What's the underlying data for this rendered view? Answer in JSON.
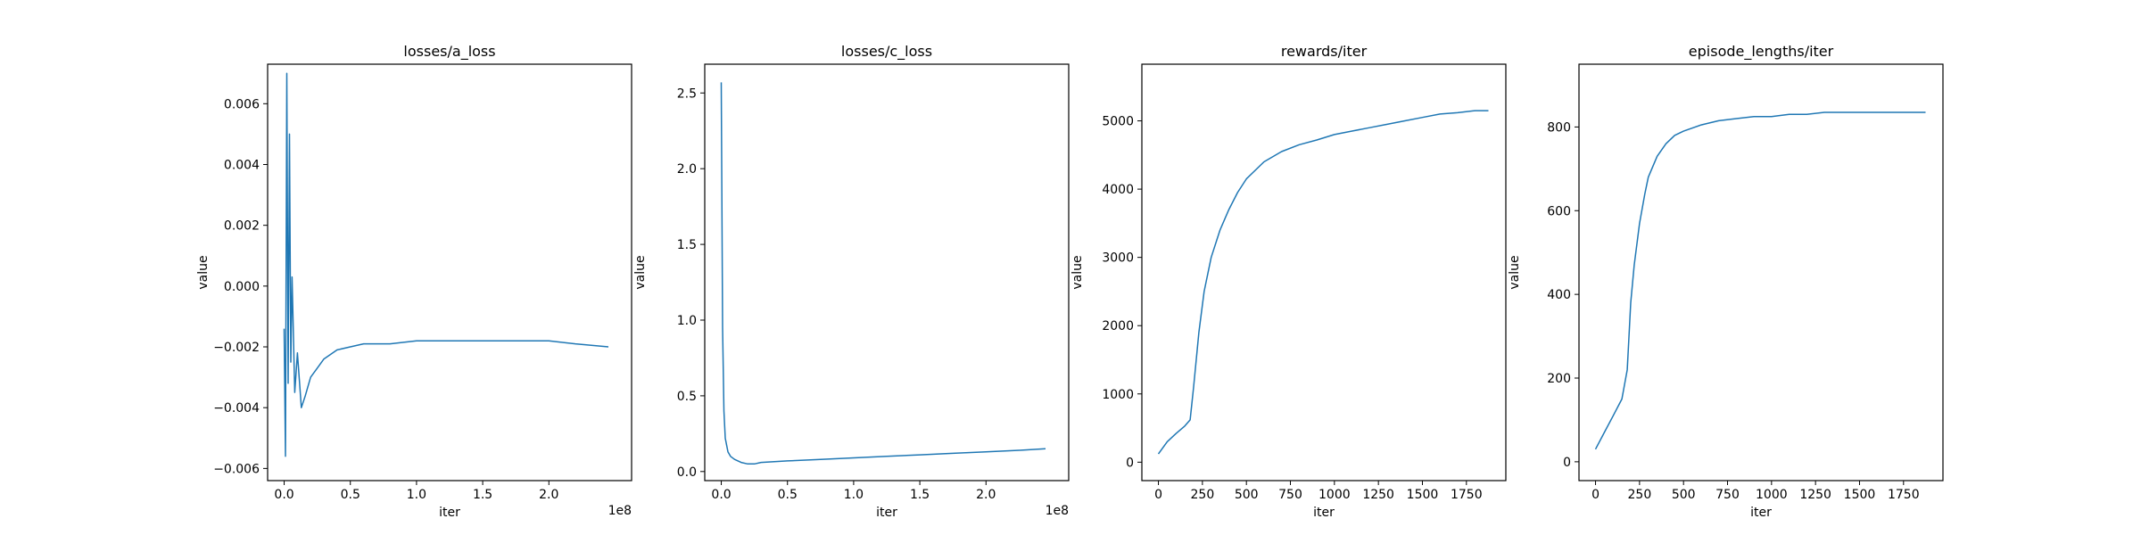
{
  "figure": {
    "line_color": "#1f77b4",
    "axis_color": "#000000",
    "background": "#ffffff"
  },
  "chart_data": [
    {
      "type": "line",
      "title": "losses/a_loss",
      "xlabel": "iter",
      "ylabel": "value",
      "x_offset_text": "1e8",
      "xlim": [
        -12500000,
        262500000
      ],
      "ylim": [
        -0.0064,
        0.0073
      ],
      "xticks": [
        0,
        50000000,
        100000000,
        150000000,
        200000000
      ],
      "xtick_labels": [
        "0.0",
        "0.5",
        "1.0",
        "1.5",
        "2.0"
      ],
      "yticks": [
        -0.006,
        -0.004,
        -0.002,
        0.0,
        0.002,
        0.004,
        0.006
      ],
      "ytick_labels": [
        "−0.006",
        "−0.004",
        "−0.002",
        "0.000",
        "0.002",
        "0.004",
        "0.006"
      ],
      "grid": false,
      "series": [
        {
          "x": [
            0,
            1000000,
            2000000,
            3000000,
            4000000,
            5000000,
            6000000,
            8000000,
            10000000,
            13000000,
            16000000,
            20000000,
            25000000,
            30000000,
            40000000,
            50000000,
            60000000,
            80000000,
            100000000,
            120000000,
            150000000,
            180000000,
            200000000,
            220000000,
            245000000
          ],
          "y": [
            -0.0014,
            -0.0056,
            0.007,
            -0.0032,
            0.005,
            -0.0025,
            0.0003,
            -0.0035,
            -0.0022,
            -0.004,
            -0.0036,
            -0.003,
            -0.0027,
            -0.0024,
            -0.0021,
            -0.002,
            -0.0019,
            -0.0019,
            -0.0018,
            -0.0018,
            -0.0018,
            -0.0018,
            -0.0018,
            -0.0019,
            -0.002
          ]
        }
      ]
    },
    {
      "type": "line",
      "title": "losses/c_loss",
      "xlabel": "iter",
      "ylabel": "value",
      "x_offset_text": "1e8",
      "xlim": [
        -12500000,
        262500000
      ],
      "ylim": [
        -0.06,
        2.69
      ],
      "xticks": [
        0,
        50000000,
        100000000,
        150000000,
        200000000
      ],
      "xtick_labels": [
        "0.0",
        "0.5",
        "1.0",
        "1.5",
        "2.0"
      ],
      "yticks": [
        0.0,
        0.5,
        1.0,
        1.5,
        2.0,
        2.5
      ],
      "ytick_labels": [
        "0.0",
        "0.5",
        "1.0",
        "1.5",
        "2.0",
        "2.5"
      ],
      "grid": false,
      "series": [
        {
          "x": [
            0,
            1000000,
            2000000,
            3000000,
            5000000,
            7000000,
            10000000,
            15000000,
            20000000,
            25000000,
            30000000,
            50000000,
            75000000,
            100000000,
            125000000,
            150000000,
            175000000,
            200000000,
            225000000,
            245000000
          ],
          "y": [
            2.57,
            0.95,
            0.4,
            0.22,
            0.13,
            0.1,
            0.08,
            0.06,
            0.05,
            0.05,
            0.06,
            0.07,
            0.08,
            0.09,
            0.1,
            0.11,
            0.12,
            0.13,
            0.14,
            0.15
          ]
        }
      ]
    },
    {
      "type": "line",
      "title": "rewards/iter",
      "xlabel": "iter",
      "ylabel": "value",
      "xlim": [
        -94,
        1974
      ],
      "ylim": [
        -270,
        5830
      ],
      "xticks": [
        0,
        250,
        500,
        750,
        1000,
        1250,
        1500,
        1750
      ],
      "xtick_labels": [
        "0",
        "250",
        "500",
        "750",
        "1000",
        "1250",
        "1500",
        "1750"
      ],
      "yticks": [
        0,
        1000,
        2000,
        3000,
        4000,
        5000
      ],
      "ytick_labels": [
        "0",
        "1000",
        "2000",
        "3000",
        "4000",
        "5000"
      ],
      "grid": false,
      "series": [
        {
          "x": [
            0,
            50,
            100,
            150,
            180,
            200,
            230,
            260,
            300,
            350,
            400,
            450,
            500,
            600,
            700,
            800,
            900,
            1000,
            1100,
            1200,
            1300,
            1400,
            1500,
            1600,
            1700,
            1800,
            1875
          ],
          "y": [
            120,
            300,
            420,
            530,
            620,
            1100,
            1900,
            2500,
            3000,
            3400,
            3700,
            3950,
            4150,
            4400,
            4550,
            4650,
            4720,
            4800,
            4850,
            4900,
            4950,
            5000,
            5050,
            5100,
            5120,
            5150,
            5150
          ]
        }
      ]
    },
    {
      "type": "line",
      "title": "episode_lengths/iter",
      "xlabel": "iter",
      "ylabel": "value",
      "xlim": [
        -94,
        1974
      ],
      "ylim": [
        -45,
        950
      ],
      "xticks": [
        0,
        250,
        500,
        750,
        1000,
        1250,
        1500,
        1750
      ],
      "xtick_labels": [
        "0",
        "250",
        "500",
        "750",
        "1000",
        "1250",
        "1500",
        "1750"
      ],
      "yticks": [
        0,
        200,
        400,
        600,
        800
      ],
      "ytick_labels": [
        "0",
        "200",
        "400",
        "600",
        "800"
      ],
      "grid": false,
      "series": [
        {
          "x": [
            0,
            50,
            100,
            150,
            180,
            200,
            220,
            250,
            280,
            300,
            350,
            400,
            450,
            500,
            600,
            700,
            800,
            900,
            1000,
            1100,
            1200,
            1300,
            1400,
            1500,
            1600,
            1700,
            1800,
            1875
          ],
          "y": [
            30,
            70,
            110,
            150,
            220,
            380,
            470,
            570,
            640,
            680,
            730,
            760,
            780,
            790,
            805,
            815,
            820,
            825,
            825,
            830,
            830,
            835,
            835,
            835,
            835,
            835,
            835,
            835
          ]
        }
      ]
    }
  ]
}
